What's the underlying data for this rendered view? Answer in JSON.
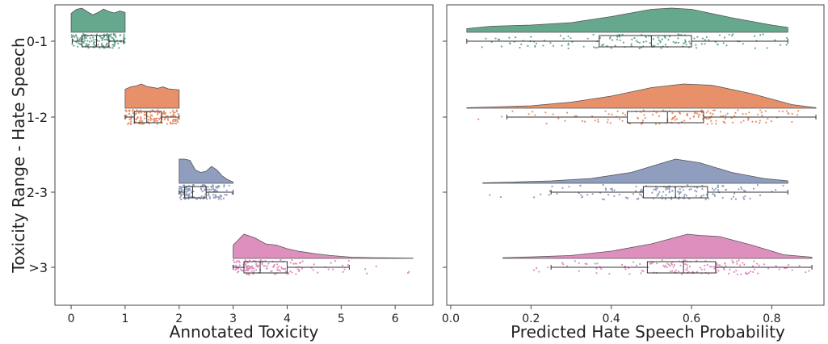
{
  "chart_data": [
    {
      "type": "raincloud",
      "xlabel": "Annotated Toxicity",
      "ylabel": "Toxicity Range - Hate Speech",
      "xlim": [
        -0.3,
        6.7
      ],
      "xticks": [
        0,
        1,
        2,
        3,
        4,
        5,
        6
      ],
      "categories": [
        "0-1",
        "1-2",
        "2-3",
        ">3"
      ],
      "colors": [
        "#66a88e",
        "#e8906a",
        "#8f9dbe",
        "#de8fbe"
      ],
      "series": [
        {
          "category": "0-1",
          "box": {
            "whisker_low": 0.02,
            "q1": 0.2,
            "median": 0.47,
            "q3": 0.7,
            "whisker_high": 0.98
          },
          "density": {
            "x": [
              0.0,
              0.1,
              0.2,
              0.3,
              0.4,
              0.5,
              0.6,
              0.7,
              0.8,
              0.9,
              1.0
            ],
            "y": [
              0.78,
              0.95,
              1.0,
              0.85,
              0.72,
              0.82,
              0.96,
              0.86,
              0.8,
              0.88,
              0.82
            ]
          }
        },
        {
          "category": "1-2",
          "box": {
            "whisker_low": 1.0,
            "q1": 1.17,
            "median": 1.4,
            "q3": 1.67,
            "whisker_high": 2.0
          },
          "density": {
            "x": [
              1.0,
              1.1,
              1.2,
              1.3,
              1.4,
              1.5,
              1.6,
              1.7,
              1.8,
              1.9,
              2.0
            ],
            "y": [
              0.78,
              0.88,
              0.92,
              1.0,
              0.9,
              0.86,
              0.82,
              0.88,
              0.8,
              0.78,
              0.76
            ]
          }
        },
        {
          "category": "2-3",
          "box": {
            "whisker_low": 2.0,
            "q1": 2.1,
            "median": 2.25,
            "q3": 2.5,
            "whisker_high": 3.0
          },
          "density": {
            "x": [
              2.0,
              2.1,
              2.2,
              2.3,
              2.4,
              2.5,
              2.6,
              2.7,
              2.8,
              2.9,
              3.0
            ],
            "y": [
              1.0,
              1.0,
              0.95,
              0.55,
              0.45,
              0.5,
              0.7,
              0.55,
              0.3,
              0.15,
              0.05
            ]
          }
        },
        {
          "category": ">3",
          "box": {
            "whisker_low": 3.0,
            "q1": 3.2,
            "median": 3.5,
            "q3": 4.0,
            "whisker_high": 5.15
          },
          "density": {
            "x": [
              3.0,
              3.2,
              3.4,
              3.6,
              3.8,
              4.0,
              4.2,
              4.5,
              4.8,
              5.2,
              5.6,
              6.0,
              6.33
            ],
            "y": [
              0.55,
              1.0,
              0.85,
              0.6,
              0.55,
              0.4,
              0.3,
              0.2,
              0.12,
              0.05,
              0.03,
              0.02,
              0.01
            ]
          }
        }
      ]
    },
    {
      "type": "raincloud",
      "xlabel": "Predicted Hate Speech Probability",
      "ylabel": "",
      "xlim": [
        -0.01,
        0.93
      ],
      "xticks": [
        0.0,
        0.2,
        0.4,
        0.6,
        0.8
      ],
      "xtick_labels": [
        "0.0",
        "0.2",
        "0.4",
        "0.6",
        "0.8"
      ],
      "categories": [
        "0-1",
        "1-2",
        "2-3",
        ">3"
      ],
      "colors": [
        "#66a88e",
        "#e8906a",
        "#8f9dbe",
        "#de8fbe"
      ],
      "series": [
        {
          "category": "0-1",
          "box": {
            "whisker_low": 0.04,
            "q1": 0.37,
            "median": 0.5,
            "q3": 0.6,
            "whisker_high": 0.84
          },
          "density": {
            "x": [
              0.04,
              0.1,
              0.2,
              0.3,
              0.4,
              0.5,
              0.55,
              0.6,
              0.7,
              0.8,
              0.84
            ],
            "y": [
              0.15,
              0.25,
              0.3,
              0.4,
              0.65,
              0.95,
              1.0,
              0.95,
              0.6,
              0.3,
              0.2
            ]
          }
        },
        {
          "category": "1-2",
          "box": {
            "whisker_low": 0.14,
            "q1": 0.44,
            "median": 0.54,
            "q3": 0.63,
            "whisker_high": 0.91
          },
          "density": {
            "x": [
              0.04,
              0.1,
              0.2,
              0.3,
              0.4,
              0.5,
              0.58,
              0.65,
              0.75,
              0.85,
              0.91
            ],
            "y": [
              0.02,
              0.05,
              0.1,
              0.25,
              0.5,
              0.85,
              1.0,
              0.95,
              0.6,
              0.15,
              0.02
            ]
          }
        },
        {
          "category": "2-3",
          "box": {
            "whisker_low": 0.25,
            "q1": 0.48,
            "median": 0.56,
            "q3": 0.64,
            "whisker_high": 0.84
          },
          "density": {
            "x": [
              0.08,
              0.15,
              0.25,
              0.35,
              0.45,
              0.5,
              0.56,
              0.62,
              0.7,
              0.78,
              0.84
            ],
            "y": [
              0.02,
              0.05,
              0.1,
              0.2,
              0.45,
              0.7,
              1.0,
              0.85,
              0.45,
              0.2,
              0.1
            ]
          }
        },
        {
          "category": ">3",
          "box": {
            "whisker_low": 0.25,
            "q1": 0.49,
            "median": 0.58,
            "q3": 0.66,
            "whisker_high": 0.9
          },
          "density": {
            "x": [
              0.13,
              0.2,
              0.3,
              0.4,
              0.5,
              0.59,
              0.62,
              0.67,
              0.75,
              0.83,
              0.9
            ],
            "y": [
              0.03,
              0.06,
              0.12,
              0.3,
              0.6,
              1.0,
              0.95,
              0.9,
              0.55,
              0.15,
              0.05
            ]
          }
        }
      ]
    }
  ]
}
